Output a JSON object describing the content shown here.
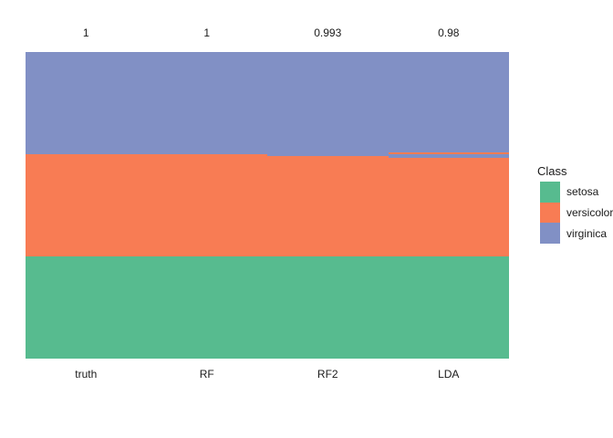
{
  "chart_data": {
    "type": "bar",
    "subtype": "stacked-normalized-columns",
    "title": "",
    "legend_title": "Class",
    "legend_position": "right",
    "grid": false,
    "total_per_column": 150,
    "categories": [
      "truth",
      "RF",
      "RF2",
      "LDA"
    ],
    "top_labels": [
      "1",
      "1",
      "0.993",
      "0.98"
    ],
    "classes": [
      {
        "name": "setosa",
        "color": "#57BB8F"
      },
      {
        "name": "versicolor",
        "color": "#F87C54"
      },
      {
        "name": "virginica",
        "color": "#8190C5"
      }
    ],
    "columns": [
      {
        "label": "truth",
        "accuracy": "1",
        "segments_top_to_bottom": [
          {
            "class": "virginica",
            "count": 50
          },
          {
            "class": "versicolor",
            "count": 50
          },
          {
            "class": "setosa",
            "count": 50
          }
        ]
      },
      {
        "label": "RF",
        "accuracy": "1",
        "segments_top_to_bottom": [
          {
            "class": "virginica",
            "count": 50
          },
          {
            "class": "versicolor",
            "count": 50
          },
          {
            "class": "setosa",
            "count": 50
          }
        ]
      },
      {
        "label": "RF2",
        "accuracy": "0.993",
        "segments_top_to_bottom": [
          {
            "class": "virginica",
            "count": 51
          },
          {
            "class": "versicolor",
            "count": 49
          },
          {
            "class": "setosa",
            "count": 50
          }
        ]
      },
      {
        "label": "LDA",
        "accuracy": "0.98",
        "segments_top_to_bottom": [
          {
            "class": "virginica",
            "count": 49
          },
          {
            "class": "versicolor",
            "count": 1
          },
          {
            "class": "virginica",
            "count": 2
          },
          {
            "class": "versicolor",
            "count": 48
          },
          {
            "class": "setosa",
            "count": 50
          }
        ]
      }
    ]
  }
}
